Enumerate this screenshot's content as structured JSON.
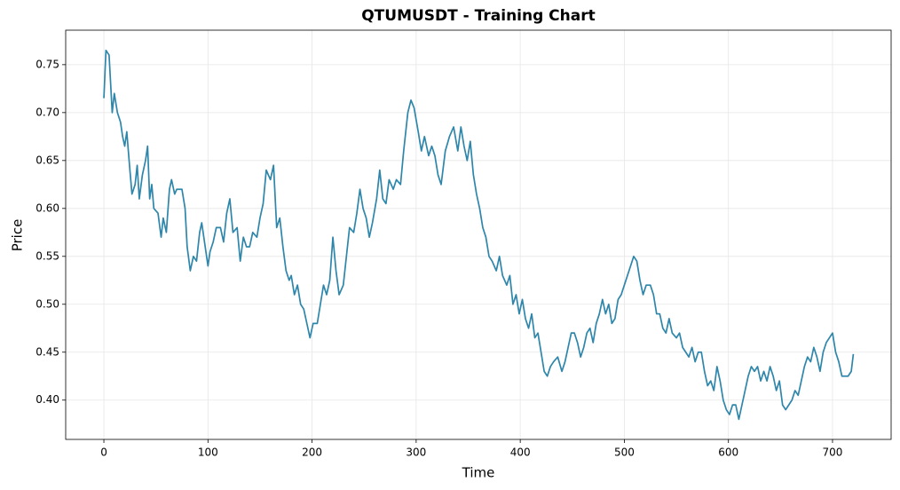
{
  "chart_data": {
    "type": "line",
    "title": "QTUMUSDT - Training Chart",
    "x_label": "Time",
    "y_label": "Price",
    "x": [
      0,
      2,
      5,
      8,
      10,
      13,
      16,
      18,
      20,
      22,
      25,
      27,
      30,
      32,
      34,
      37,
      40,
      42,
      44,
      46,
      48,
      52,
      55,
      57,
      60,
      63,
      65,
      68,
      70,
      75,
      78,
      80,
      83,
      86,
      89,
      92,
      94,
      96,
      100,
      102,
      105,
      108,
      112,
      115,
      118,
      121,
      124,
      128,
      131,
      134,
      137,
      140,
      143,
      147,
      150,
      153,
      156,
      160,
      163,
      166,
      169,
      172,
      175,
      178,
      180,
      183,
      186,
      189,
      192,
      195,
      198,
      201,
      205,
      208,
      211,
      214,
      217,
      220,
      223,
      226,
      230,
      233,
      236,
      240,
      243,
      246,
      249,
      252,
      255,
      258,
      262,
      265,
      268,
      271,
      274,
      278,
      281,
      285,
      288,
      292,
      295,
      298,
      302,
      305,
      308,
      312,
      315,
      318,
      321,
      324,
      328,
      332,
      336,
      340,
      343,
      346,
      349,
      352,
      355,
      358,
      361,
      364,
      367,
      370,
      373,
      377,
      380,
      383,
      387,
      390,
      393,
      396,
      399,
      402,
      405,
      408,
      411,
      414,
      417,
      420,
      423,
      426,
      429,
      432,
      436,
      440,
      443,
      446,
      449,
      452,
      455,
      458,
      461,
      464,
      467,
      470,
      473,
      476,
      479,
      482,
      485,
      488,
      491,
      494,
      497,
      500,
      503,
      506,
      509,
      512,
      515,
      518,
      521,
      525,
      528,
      531,
      534,
      537,
      540,
      543,
      546,
      550,
      553,
      556,
      559,
      562,
      565,
      568,
      571,
      574,
      577,
      580,
      583,
      586,
      589,
      592,
      595,
      598,
      601,
      604,
      607,
      610,
      613,
      616,
      619,
      622,
      625,
      628,
      631,
      634,
      637,
      640,
      643,
      646,
      649,
      652,
      655,
      658,
      661,
      664,
      667,
      670,
      673,
      676,
      679,
      682,
      685,
      688,
      691,
      694,
      697,
      700,
      703,
      706,
      709,
      712,
      715,
      718,
      720
    ],
    "series": [
      {
        "name": "QTUMUSDT",
        "color": "#2e86ab",
        "values": [
          0.715,
          0.765,
          0.76,
          0.7,
          0.72,
          0.7,
          0.69,
          0.675,
          0.665,
          0.68,
          0.64,
          0.615,
          0.625,
          0.645,
          0.61,
          0.635,
          0.65,
          0.665,
          0.61,
          0.625,
          0.6,
          0.595,
          0.57,
          0.59,
          0.575,
          0.62,
          0.63,
          0.615,
          0.62,
          0.62,
          0.6,
          0.56,
          0.535,
          0.55,
          0.545,
          0.575,
          0.585,
          0.57,
          0.54,
          0.555,
          0.565,
          0.58,
          0.58,
          0.565,
          0.595,
          0.61,
          0.575,
          0.58,
          0.545,
          0.57,
          0.56,
          0.56,
          0.575,
          0.57,
          0.59,
          0.605,
          0.64,
          0.63,
          0.645,
          0.58,
          0.59,
          0.56,
          0.535,
          0.525,
          0.53,
          0.51,
          0.52,
          0.5,
          0.495,
          0.48,
          0.465,
          0.48,
          0.48,
          0.5,
          0.52,
          0.51,
          0.525,
          0.57,
          0.535,
          0.51,
          0.52,
          0.55,
          0.58,
          0.575,
          0.595,
          0.62,
          0.6,
          0.59,
          0.57,
          0.585,
          0.61,
          0.64,
          0.61,
          0.605,
          0.63,
          0.62,
          0.63,
          0.625,
          0.66,
          0.7,
          0.713,
          0.705,
          0.68,
          0.66,
          0.675,
          0.655,
          0.665,
          0.655,
          0.635,
          0.625,
          0.66,
          0.675,
          0.685,
          0.66,
          0.685,
          0.665,
          0.65,
          0.67,
          0.635,
          0.615,
          0.6,
          0.58,
          0.57,
          0.55,
          0.545,
          0.535,
          0.55,
          0.53,
          0.52,
          0.53,
          0.5,
          0.51,
          0.49,
          0.505,
          0.485,
          0.475,
          0.49,
          0.465,
          0.47,
          0.45,
          0.43,
          0.425,
          0.435,
          0.44,
          0.445,
          0.43,
          0.44,
          0.455,
          0.47,
          0.47,
          0.46,
          0.445,
          0.455,
          0.47,
          0.475,
          0.46,
          0.48,
          0.49,
          0.505,
          0.49,
          0.5,
          0.48,
          0.485,
          0.505,
          0.51,
          0.52,
          0.53,
          0.54,
          0.55,
          0.545,
          0.525,
          0.51,
          0.52,
          0.52,
          0.51,
          0.49,
          0.49,
          0.475,
          0.47,
          0.485,
          0.47,
          0.465,
          0.47,
          0.455,
          0.45,
          0.445,
          0.455,
          0.44,
          0.45,
          0.45,
          0.43,
          0.415,
          0.42,
          0.41,
          0.435,
          0.42,
          0.4,
          0.39,
          0.385,
          0.395,
          0.395,
          0.38,
          0.395,
          0.41,
          0.425,
          0.435,
          0.43,
          0.435,
          0.42,
          0.43,
          0.42,
          0.435,
          0.425,
          0.41,
          0.42,
          0.395,
          0.39,
          0.395,
          0.4,
          0.41,
          0.405,
          0.42,
          0.435,
          0.445,
          0.44,
          0.455,
          0.445,
          0.43,
          0.45,
          0.46,
          0.465,
          0.47,
          0.45,
          0.44,
          0.425,
          0.425,
          0.425,
          0.43,
          0.448
        ]
      }
    ],
    "xlim": [
      -36.7,
      756.3
    ],
    "xticks": [
      0,
      100,
      200,
      300,
      400,
      500,
      600,
      700
    ],
    "ylim": [
      0.359,
      0.786
    ],
    "yticks": [
      {
        "value": 0.4,
        "label": "0.40"
      },
      {
        "value": 0.45,
        "label": "0.45"
      },
      {
        "value": 0.5,
        "label": "0.50"
      },
      {
        "value": 0.55,
        "label": "0.55"
      },
      {
        "value": 0.6,
        "label": "0.60"
      },
      {
        "value": 0.65,
        "label": "0.65"
      },
      {
        "value": 0.7,
        "label": "0.70"
      },
      {
        "value": 0.75,
        "label": "0.75"
      }
    ],
    "grid": true
  }
}
